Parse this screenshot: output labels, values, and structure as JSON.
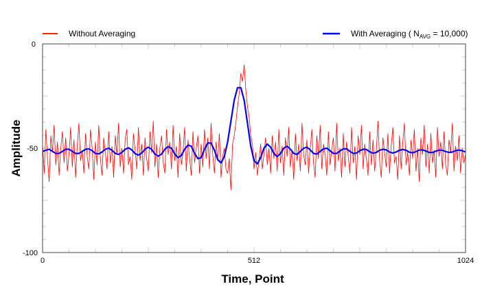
{
  "chart_data": {
    "type": "line",
    "title": "",
    "xlabel": "Time, Point",
    "ylabel": "Amplitude",
    "xlim": [
      0,
      1024
    ],
    "ylim": [
      -100,
      0
    ],
    "xticks": [
      "0",
      "512",
      "1024"
    ],
    "xtick_values": [
      0,
      512,
      1024
    ],
    "yticks": [
      "0",
      "-50",
      "-100"
    ],
    "ytick_values": [
      0,
      -50,
      -100
    ],
    "legend_position": "top",
    "series": [
      {
        "name": "Without Averaging",
        "color": "#ff0000",
        "x_step": 4,
        "values": [
          -48,
          -62,
          -41,
          -55,
          -66,
          -44,
          -52,
          -39,
          -58,
          -47,
          -63,
          -50,
          -42,
          -57,
          -45,
          -61,
          -53,
          -40,
          -59,
          -46,
          -64,
          -49,
          -38,
          -56,
          -51,
          -62,
          -43,
          -54,
          -60,
          -41,
          -50,
          -65,
          -47,
          -58,
          -39,
          -55,
          -63,
          -45,
          -52,
          -60,
          -42,
          -57,
          -49,
          -64,
          -44,
          -53,
          -38,
          -59,
          -50,
          -62,
          -46,
          -41,
          -58,
          -54,
          -65,
          -43,
          -51,
          -60,
          -40,
          -56,
          -48,
          -63,
          -45,
          -55,
          -61,
          -42,
          -52,
          -37,
          -59,
          -48,
          -64,
          -50,
          -44,
          -57,
          -62,
          -41,
          -53,
          -47,
          -60,
          -39,
          -56,
          -49,
          -64,
          -43,
          -58,
          -52,
          -40,
          -61,
          -46,
          -55,
          -63,
          -42,
          -57,
          -50,
          -44,
          -62,
          -48,
          -59,
          -41,
          -55,
          -45,
          -60,
          -38,
          -53,
          -62,
          -47,
          -56,
          -43,
          -64,
          -54,
          -50,
          -60,
          -62,
          -55,
          -70,
          -48,
          -44,
          -38,
          -30,
          -24,
          -14,
          -18,
          -10,
          -22,
          -30,
          -35,
          -44,
          -48,
          -60,
          -52,
          -63,
          -56,
          -48,
          -60,
          -53,
          -45,
          -58,
          -50,
          -62,
          -44,
          -55,
          -47,
          -61,
          -41,
          -57,
          -49,
          -63,
          -45,
          -54,
          -40,
          -59,
          -51,
          -65,
          -43,
          -56,
          -48,
          -61,
          -38,
          -53,
          -58,
          -46,
          -62,
          -50,
          -41,
          -57,
          -64,
          -44,
          -55,
          -39,
          -60,
          -48,
          -53,
          -63,
          -42,
          -58,
          -51,
          -45,
          -61,
          -38,
          -56,
          -50,
          -64,
          -43,
          -59,
          -47,
          -54,
          -62,
          -40,
          -57,
          -49,
          -65,
          -44,
          -53,
          -39,
          -60,
          -48,
          -55,
          -63,
          -42,
          -58,
          -46,
          -61,
          -51,
          -37,
          -56,
          -64,
          -45,
          -52,
          -59,
          -43,
          -62,
          -49,
          -40,
          -57,
          -54,
          -65,
          -44,
          -60,
          -47,
          -38,
          -58,
          -52,
          -63,
          -46,
          -55,
          -41,
          -61,
          -50,
          -66,
          -45,
          -53,
          -39,
          -59,
          -48,
          -62,
          -43,
          -57,
          -51,
          -64,
          -40,
          -54,
          -47,
          -60,
          -42,
          -58,
          -63,
          -46,
          -52,
          -38,
          -61,
          -49,
          -56,
          -44,
          -62,
          -50,
          -57,
          -53
        ]
      },
      {
        "name": "With Averaging ( N",
        "name_subscript": "AVG",
        "name_suffix": " = 10,000)",
        "color": "#0000ff",
        "x_step": 8,
        "values": [
          -51.5,
          -51,
          -50.5,
          -51.5,
          -52.5,
          -52.5,
          -51.5,
          -50.5,
          -50.5,
          -51.5,
          -52.5,
          -52.5,
          -51.5,
          -50.5,
          -50.3,
          -51.2,
          -52.5,
          -52.7,
          -51.8,
          -50.5,
          -50,
          -51,
          -52.5,
          -53,
          -52,
          -50.5,
          -49.8,
          -50.8,
          -52.6,
          -53.3,
          -52.3,
          -50.5,
          -49.5,
          -50.5,
          -52.8,
          -53.8,
          -52.8,
          -50.5,
          -49.2,
          -50,
          -52.8,
          -54.5,
          -53.5,
          -50.5,
          -48.5,
          -49,
          -52.5,
          -55,
          -54.5,
          -50.5,
          -47.5,
          -47.5,
          -51,
          -55.5,
          -57,
          -54,
          -47,
          -37,
          -27,
          -21,
          -21,
          -27,
          -38,
          -49,
          -56,
          -57.5,
          -54.5,
          -50,
          -48,
          -49.5,
          -52.5,
          -54,
          -52.5,
          -50,
          -49,
          -50.5,
          -52.5,
          -53,
          -51.5,
          -50,
          -49.5,
          -50.8,
          -52.5,
          -52.8,
          -51.5,
          -50.3,
          -50,
          -51.2,
          -52.5,
          -52.5,
          -51.3,
          -50.3,
          -50.3,
          -51.5,
          -52.5,
          -52.3,
          -51.2,
          -50.5,
          -50.6,
          -51.7,
          -52.4,
          -52,
          -51,
          -50.5,
          -50.8,
          -51.8,
          -52.3,
          -51.8,
          -51,
          -50.6,
          -51,
          -51.9,
          -52.2,
          -51.6,
          -50.9,
          -50.8,
          -51.3,
          -52,
          -52,
          -51.4,
          -50.9,
          -51,
          -51.6,
          -52,
          -51.8,
          -51.2,
          -50.9,
          -51.2,
          -51.8
        ]
      }
    ]
  }
}
